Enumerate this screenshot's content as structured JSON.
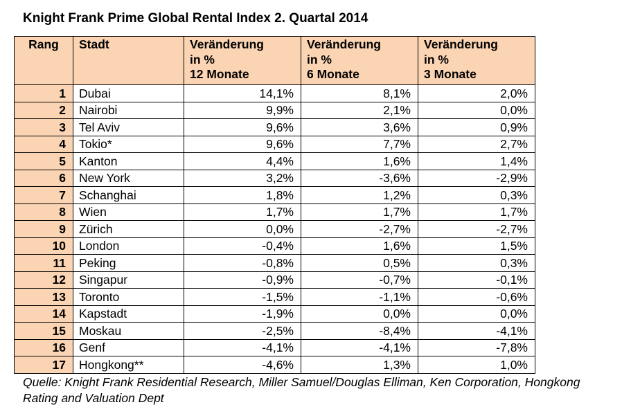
{
  "title": "Knight Frank Prime Global Rental Index 2. Quartal 2014",
  "table": {
    "headers": {
      "rank": "Rang",
      "city": "Stadt",
      "change_12": [
        "Veränderung",
        "in %",
        "12 Monate"
      ],
      "change_6": [
        "Veränderung",
        "in %",
        "6 Monate"
      ],
      "change_3": [
        "Veränderung",
        "in %",
        "3 Monate"
      ]
    },
    "rows": [
      {
        "rank": "1",
        "city": "Dubai",
        "m12": "14,1%",
        "m6": "8,1%",
        "m3": "2,0%"
      },
      {
        "rank": "2",
        "city": "Nairobi",
        "m12": "9,9%",
        "m6": "2,1%",
        "m3": "0,0%"
      },
      {
        "rank": "3",
        "city": "Tel Aviv",
        "m12": "9,6%",
        "m6": "3,6%",
        "m3": "0,9%"
      },
      {
        "rank": "4",
        "city": "Tokio*",
        "m12": "9,6%",
        "m6": "7,7%",
        "m3": "2,7%"
      },
      {
        "rank": "5",
        "city": "Kanton",
        "m12": "4,4%",
        "m6": "1,6%",
        "m3": "1,4%"
      },
      {
        "rank": "6",
        "city": "New York",
        "m12": "3,2%",
        "m6": "-3,6%",
        "m3": "-2,9%"
      },
      {
        "rank": "7",
        "city": "Schanghai",
        "m12": "1,8%",
        "m6": "1,2%",
        "m3": "0,3%"
      },
      {
        "rank": "8",
        "city": "Wien",
        "m12": "1,7%",
        "m6": "1,7%",
        "m3": "1,7%"
      },
      {
        "rank": "9",
        "city": "Zürich",
        "m12": "0,0%",
        "m6": "-2,7%",
        "m3": "-2,7%"
      },
      {
        "rank": "10",
        "city": "London",
        "m12": "-0,4%",
        "m6": "1,6%",
        "m3": "1,5%"
      },
      {
        "rank": "11",
        "city": "Peking",
        "m12": "-0,8%",
        "m6": "0,5%",
        "m3": "0,3%"
      },
      {
        "rank": "12",
        "city": "Singapur",
        "m12": "-0,9%",
        "m6": "-0,7%",
        "m3": "-0,1%"
      },
      {
        "rank": "13",
        "city": "Toronto",
        "m12": "-1,5%",
        "m6": "-1,1%",
        "m3": "-0,6%"
      },
      {
        "rank": "14",
        "city": "Kapstadt",
        "m12": "-1,9%",
        "m6": "0,0%",
        "m3": "0,0%"
      },
      {
        "rank": "15",
        "city": "Moskau",
        "m12": "-2,5%",
        "m6": "-8,4%",
        "m3": "-4,1%"
      },
      {
        "rank": "16",
        "city": "Genf",
        "m12": "-4,1%",
        "m6": "-4,1%",
        "m3": "-7,8%"
      },
      {
        "rank": "17",
        "city": "Hongkong**",
        "m12": "-4,6%",
        "m6": "1,3%",
        "m3": "1,0%"
      }
    ]
  },
  "source": "Quelle: Knight Frank Residential Research, Miller Samuel/Douglas Elliman, Ken Corporation, Hongkong Rating and Valuation Dept",
  "colors": {
    "header_fill": "#fbd4b4",
    "border": "#000000"
  }
}
